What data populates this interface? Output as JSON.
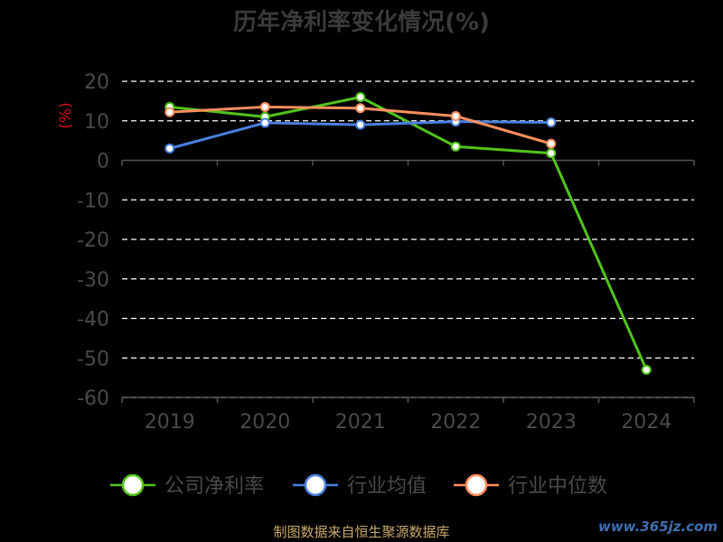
{
  "page": {
    "title": "历年净利率变化情况(%)",
    "footer": "制图数据来自恒生聚源数据库",
    "watermark": "www.365jz.com"
  },
  "chart_data": {
    "type": "line",
    "title": "历年净利率变化情况(%)",
    "ylabel": "(%)",
    "xlabel": "",
    "categories": [
      "2019",
      "2020",
      "2021",
      "2022",
      "2023",
      "2024"
    ],
    "ylim": [
      -60,
      20
    ],
    "yticks": [
      20,
      10,
      0,
      -10,
      -20,
      -30,
      -40,
      -50,
      -60
    ],
    "grid": true,
    "legend_position": "bottom",
    "series": [
      {
        "name": "公司净利率",
        "color": "#52c41a",
        "values": [
          13.5,
          11.0,
          16.0,
          3.5,
          1.8,
          -53.0
        ]
      },
      {
        "name": "行业均值",
        "color": "#4a7fe0",
        "values": [
          3.0,
          9.5,
          9.0,
          9.8,
          9.6,
          null
        ]
      },
      {
        "name": "行业中位数",
        "color": "#ff8f5e",
        "values": [
          12.2,
          13.5,
          13.2,
          11.2,
          4.2,
          null
        ]
      }
    ],
    "colors": {
      "axis_text": "#4a4a4a",
      "axis_line": "#555555",
      "grid": "#ffffff",
      "ylabel": "#d01010"
    }
  }
}
